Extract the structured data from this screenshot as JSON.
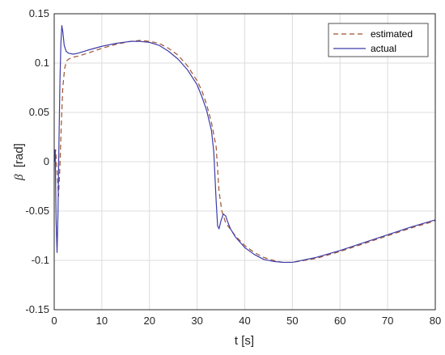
{
  "chart_data": {
    "type": "line",
    "title": "",
    "xlabel": "t [s]",
    "ylabel_symbol": "β",
    "ylabel_unit": "[rad]",
    "xlim": [
      0,
      80
    ],
    "ylim": [
      -0.15,
      0.15
    ],
    "grid": true,
    "legend_position": "top-right",
    "x_ticks": [
      0,
      10,
      20,
      30,
      40,
      50,
      60,
      70,
      80
    ],
    "x_tick_labels": [
      "0",
      "10",
      "20",
      "30",
      "40",
      "50",
      "60",
      "70",
      "80"
    ],
    "y_ticks": [
      -0.15,
      -0.1,
      -0.05,
      0,
      0.05,
      0.1,
      0.15
    ],
    "y_tick_labels": [
      "-0.15",
      "-0.1",
      "-0.05",
      "0",
      "0.05",
      "0.1",
      "0.15"
    ],
    "series": [
      {
        "name": "estimated",
        "color": "#a0522d",
        "style": "dashed",
        "x": [
          0,
          0.3,
          0.6,
          0.9,
          1.2,
          1.5,
          1.8,
          2.2,
          2.6,
          3,
          4,
          5,
          7,
          10,
          13,
          16,
          18,
          20,
          22,
          24,
          26,
          28,
          30,
          31,
          32,
          33,
          34,
          34.6,
          35.2,
          36,
          38,
          40,
          42,
          44,
          46,
          48,
          50,
          55,
          60,
          65,
          70,
          75,
          80
        ],
        "y": [
          0.0,
          0.012,
          -0.01,
          -0.035,
          -0.005,
          0.04,
          0.075,
          0.095,
          0.102,
          0.104,
          0.106,
          0.107,
          0.11,
          0.115,
          0.119,
          0.122,
          0.123,
          0.122,
          0.12,
          0.115,
          0.108,
          0.097,
          0.082,
          0.072,
          0.058,
          0.04,
          0.015,
          -0.03,
          -0.05,
          -0.062,
          -0.075,
          -0.085,
          -0.092,
          -0.097,
          -0.1,
          -0.102,
          -0.102,
          -0.098,
          -0.091,
          -0.083,
          -0.075,
          -0.067,
          -0.06
        ]
      },
      {
        "name": "actual",
        "color": "#3c3caa",
        "style": "solid",
        "x": [
          0,
          0.2,
          0.4,
          0.6,
          0.8,
          1.0,
          1.2,
          1.4,
          1.6,
          1.8,
          2.1,
          2.5,
          3,
          4,
          5,
          7,
          10,
          13,
          16,
          18,
          20,
          22,
          24,
          26,
          28,
          30,
          31,
          32,
          33,
          33.5,
          34,
          34.3,
          34.6,
          35.0,
          35.5,
          36.0,
          36.5,
          37,
          38,
          40,
          42,
          44,
          46,
          48,
          50,
          55,
          60,
          65,
          70,
          75,
          80
        ],
        "y": [
          0.0,
          0.012,
          -0.06,
          -0.092,
          -0.05,
          0.02,
          0.08,
          0.12,
          0.138,
          0.132,
          0.118,
          0.112,
          0.11,
          0.109,
          0.11,
          0.113,
          0.117,
          0.12,
          0.122,
          0.122,
          0.121,
          0.118,
          0.112,
          0.104,
          0.093,
          0.078,
          0.066,
          0.052,
          0.032,
          0.01,
          -0.04,
          -0.065,
          -0.068,
          -0.06,
          -0.053,
          -0.055,
          -0.062,
          -0.068,
          -0.076,
          -0.087,
          -0.094,
          -0.099,
          -0.101,
          -0.102,
          -0.102,
          -0.097,
          -0.09,
          -0.082,
          -0.074,
          -0.066,
          -0.059
        ]
      }
    ]
  }
}
